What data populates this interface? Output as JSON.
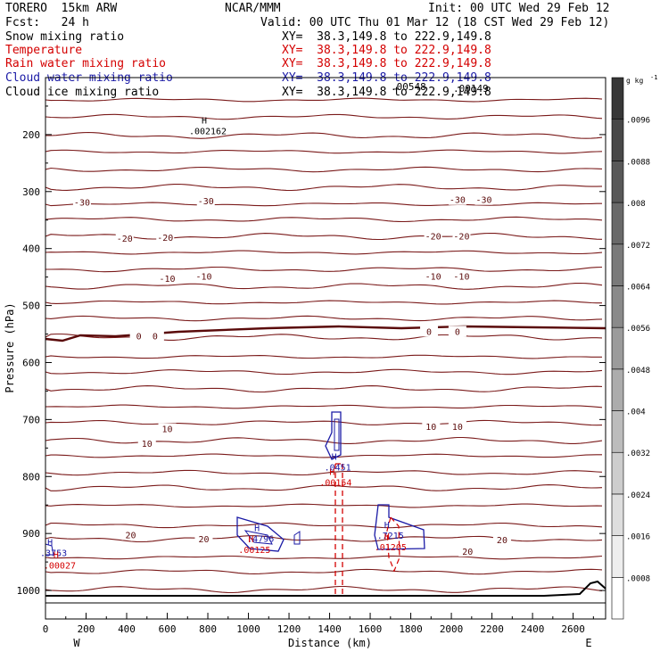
{
  "header": {
    "model": "TORERO  15km ARW",
    "org": "NCAR/MMM",
    "init": "Init: 00 UTC Wed 29 Feb 12",
    "fcst": "Fcst:   24 h",
    "valid": "Valid: 00 UTC Thu 01 Mar 12 (18 CST Wed 29 Feb 12)"
  },
  "fields": [
    {
      "name": "Snow mixing ratio",
      "xy": "XY=  38.3,149.8 to 222.9,149.8",
      "color": "#000000"
    },
    {
      "name": "Temperature",
      "xy": "XY=  38.3,149.8 to 222.9,149.8",
      "color": "#d40000"
    },
    {
      "name": "Rain water mixing ratio",
      "xy": "XY=  38.3,149.8 to 222.9,149.8",
      "color": "#d40000"
    },
    {
      "name": "Cloud water mixing ratio",
      "xy": "XY=  38.3,149.8 to 222.9,149.8",
      "color": "#1a1aa6"
    },
    {
      "name": "Cloud ice mixing ratio",
      "xy": "XY=  38.3,149.8 to 222.9,149.8",
      "color": "#000000"
    }
  ],
  "chart_data": {
    "type": "contour-cross-section",
    "xlabel": "Distance (km)",
    "ylabel": "Pressure (hPa)",
    "xlim": [
      0,
      2760
    ],
    "x_ticks": [
      0,
      200,
      400,
      600,
      800,
      1000,
      1200,
      1400,
      1600,
      1800,
      2000,
      2200,
      2400,
      2600
    ],
    "ylim": [
      1050,
      100
    ],
    "y_ticks": [
      200,
      300,
      400,
      500,
      600,
      700,
      800,
      900,
      1000
    ],
    "y_scale": "linear",
    "end_labels": {
      "left": "W",
      "right": "E"
    },
    "colorbar": {
      "unit": "g kg",
      "unit_exp": "-1",
      "ticks": [
        ".0008",
        ".0016",
        ".0024",
        ".0032",
        ".004",
        ".0048",
        ".0056",
        ".0064",
        ".0072",
        ".008",
        ".0088",
        ".0096"
      ],
      "min": 0.0,
      "max": 0.0104
    },
    "temperature_labels": [
      {
        "text": "-30",
        "x": 180,
        "p": 318
      },
      {
        "text": "-30",
        "x": 790,
        "p": 316
      },
      {
        "text": "-30",
        "x": 2030,
        "p": 314
      },
      {
        "text": "-30",
        "x": 2160,
        "p": 314
      },
      {
        "text": "-20",
        "x": 390,
        "p": 382
      },
      {
        "text": "-20",
        "x": 590,
        "p": 380
      },
      {
        "text": "-20",
        "x": 1910,
        "p": 378
      },
      {
        "text": "-20",
        "x": 2050,
        "p": 378
      },
      {
        "text": "-10",
        "x": 600,
        "p": 452
      },
      {
        "text": "-10",
        "x": 780,
        "p": 448
      },
      {
        "text": "-10",
        "x": 1910,
        "p": 448
      },
      {
        "text": "-10",
        "x": 2050,
        "p": 448
      },
      {
        "text": "0",
        "x": 460,
        "p": 553
      },
      {
        "text": "0",
        "x": 540,
        "p": 553
      },
      {
        "text": "0",
        "x": 1890,
        "p": 545
      },
      {
        "text": "0",
        "x": 2030,
        "p": 545
      },
      {
        "text": "10",
        "x": 500,
        "p": 742
      },
      {
        "text": "10",
        "x": 600,
        "p": 716
      },
      {
        "text": "10",
        "x": 1900,
        "p": 712
      },
      {
        "text": "10",
        "x": 2030,
        "p": 712
      },
      {
        "text": "20",
        "x": 420,
        "p": 902
      },
      {
        "text": "20",
        "x": 780,
        "p": 909
      },
      {
        "text": "20",
        "x": 2080,
        "p": 931
      },
      {
        "text": "20",
        "x": 2250,
        "p": 911
      }
    ],
    "max_labels": [
      {
        "h": "H",
        "value": ".002162",
        "x": 800,
        "p": 190,
        "color": "#000000"
      },
      {
        "h": "H",
        "value": ".3753",
        "x": 40,
        "p": 930,
        "color": "#1a1aa6"
      },
      {
        "h": "H",
        "value": ".00027",
        "x": 70,
        "p": 952,
        "color": "#d40000"
      },
      {
        "h": "H",
        "value": ".4796",
        "x": 1060,
        "p": 905,
        "color": "#1a1aa6"
      },
      {
        "h": "H",
        "value": ".00125",
        "x": 1030,
        "p": 925,
        "color": "#d40000"
      },
      {
        "h": "H",
        "value": ".0451",
        "x": 1440,
        "p": 780,
        "color": "#1a1aa6"
      },
      {
        "h": "H",
        "value": ".00154",
        "x": 1430,
        "p": 807,
        "color": "#d40000"
      },
      {
        "h": "H",
        "value": ".7215",
        "x": 1700,
        "p": 900,
        "color": "#1a1aa6"
      },
      {
        "h": "H",
        "value": ".01205",
        "x": 1700,
        "p": 920,
        "color": "#d40000"
      }
    ],
    "top_overlap_labels": [
      ".00548",
      ".00149"
    ]
  }
}
